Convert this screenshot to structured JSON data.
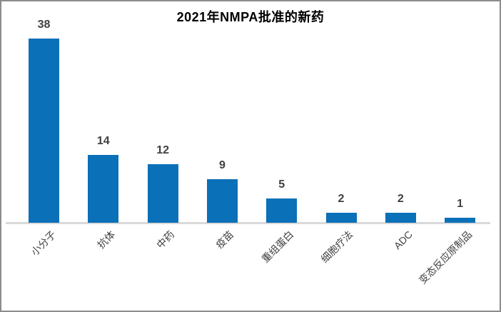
{
  "chart_data": {
    "type": "bar",
    "title": "2021年NMPA批准的新药",
    "categories": [
      "小分子",
      "抗体",
      "中药",
      "疫苗",
      "重组蛋白",
      "细胞疗法",
      "ADC",
      "变态反应原制品"
    ],
    "values": [
      38,
      14,
      12,
      9,
      5,
      2,
      2,
      1
    ],
    "series": [
      {
        "name": "2021年NMPA批准的新药",
        "values": [
          38,
          14,
          12,
          9,
          5,
          2,
          2,
          1
        ]
      }
    ],
    "xlabel": "",
    "ylabel": "",
    "ylim": [
      0,
      40
    ],
    "grid": false,
    "legend": false,
    "data_labels_shown": true,
    "x_tick_rotation_deg": 45,
    "colors": {
      "bar": "#0A70B8",
      "value_label": "#404040",
      "title": "#000000",
      "axis_label": "#404040",
      "axis_line": "#D9D9D9",
      "chart_border": "#8C8C8C",
      "background": "#FFFFFF"
    }
  }
}
